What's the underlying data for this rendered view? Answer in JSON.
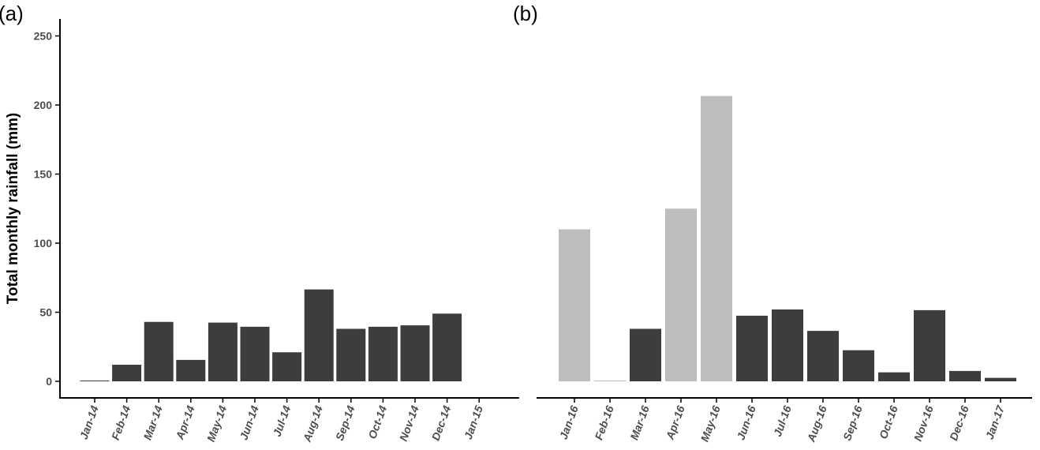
{
  "chart_data": [
    {
      "type": "bar",
      "panel_label": "(a)",
      "ylabel": "Total monthly rainfall (mm)",
      "ylim": [
        0,
        260
      ],
      "yticks": [
        0,
        50,
        100,
        150,
        200,
        250
      ],
      "tick_labels": [
        "Jan-14",
        "Feb-14",
        "Mar-14",
        "Apr-14",
        "May-14",
        "Jun-14",
        "Jul-14",
        "Aug-14",
        "Sep-14",
        "Oct-14",
        "Nov-14",
        "Dec-14",
        "Jan-15"
      ],
      "categories": [
        "2014-01",
        "2014-02",
        "2014-03",
        "2014-04",
        "2014-05",
        "2014-06",
        "2014-07",
        "2014-08",
        "2014-09",
        "2014-10",
        "2014-11",
        "2014-12"
      ],
      "values": [
        0.5,
        12,
        43,
        15.5,
        42.5,
        39.5,
        21,
        66.5,
        38,
        39.5,
        40.5,
        49
      ],
      "colors": [
        "#3d3d3d",
        "#3d3d3d",
        "#3d3d3d",
        "#3d3d3d",
        "#3d3d3d",
        "#3d3d3d",
        "#3d3d3d",
        "#3d3d3d",
        "#3d3d3d",
        "#3d3d3d",
        "#3d3d3d",
        "#3d3d3d"
      ],
      "grid": false
    },
    {
      "type": "bar",
      "panel_label": "(b)",
      "ylim": [
        0,
        260
      ],
      "tick_labels": [
        "Jan-16",
        "Feb-16",
        "Mar-16",
        "Apr-16",
        "May-16",
        "Jun-16",
        "Jul-16",
        "Aug-16",
        "Sep-16",
        "Oct-16",
        "Nov-16",
        "Dec-16",
        "Jan-17"
      ],
      "categories": [
        "2016-01",
        "2016-02",
        "2016-03",
        "2016-04",
        "2016-05",
        "2016-06",
        "2016-07",
        "2016-08",
        "2016-09",
        "2016-10",
        "2016-11",
        "2016-12",
        "2017-01"
      ],
      "values": [
        110,
        0,
        38,
        125,
        206.5,
        47.5,
        52,
        36.5,
        22.5,
        6.5,
        51.5,
        7.5,
        2.5
      ],
      "colors": [
        "#bdbdbd",
        "#bdbdbd",
        "#3d3d3d",
        "#bdbdbd",
        "#bdbdbd",
        "#3d3d3d",
        "#3d3d3d",
        "#3d3d3d",
        "#3d3d3d",
        "#3d3d3d",
        "#3d3d3d",
        "#3d3d3d",
        "#3d3d3d"
      ],
      "grid": false
    }
  ]
}
